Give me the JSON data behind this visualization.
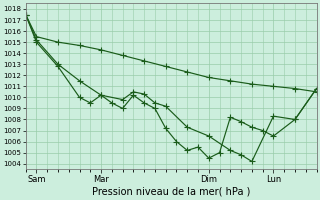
{
  "xlabel": "Pression niveau de la mer( hPa )",
  "ylim": [
    1003.5,
    1018.5
  ],
  "yticks": [
    1004,
    1005,
    1006,
    1007,
    1008,
    1009,
    1010,
    1011,
    1012,
    1013,
    1014,
    1015,
    1016,
    1017,
    1018
  ],
  "bg_color": "#cceedd",
  "line_color": "#1a5c1a",
  "grid_color": "#99ccaa",
  "x_ticks_labels": [
    "Sam",
    "Mar",
    "Dim",
    "Lun"
  ],
  "x_ticks_pos": [
    1,
    7,
    17,
    23
  ],
  "xlim": [
    0,
    27
  ],
  "line1_x": [
    0,
    1,
    3,
    5,
    7,
    9,
    11,
    13,
    15,
    17,
    19,
    21,
    23,
    25,
    27
  ],
  "line1_y": [
    1017.5,
    1015.5,
    1015.0,
    1014.7,
    1014.3,
    1013.8,
    1013.3,
    1012.8,
    1012.3,
    1011.8,
    1011.5,
    1011.2,
    1011.0,
    1010.8,
    1010.5
  ],
  "line2_x": [
    0,
    1,
    3,
    5,
    7,
    9,
    10,
    11,
    12,
    13,
    15,
    17,
    19,
    20,
    21,
    23,
    25,
    27
  ],
  "line2_y": [
    1017.5,
    1015.2,
    1013.0,
    1011.5,
    1010.2,
    1009.8,
    1010.5,
    1010.3,
    1009.5,
    1009.2,
    1007.3,
    1006.5,
    1005.2,
    1004.8,
    1004.2,
    1008.3,
    1008.0,
    1010.8
  ],
  "line3_x": [
    0,
    1,
    3,
    5,
    6,
    7,
    8,
    9,
    10,
    11,
    12,
    13,
    14,
    15,
    16,
    17,
    18,
    19,
    20,
    21,
    22,
    23,
    25,
    27
  ],
  "line3_y": [
    1017.5,
    1015.0,
    1012.8,
    1010.0,
    1009.5,
    1010.2,
    1009.5,
    1009.0,
    1010.2,
    1009.5,
    1009.0,
    1007.2,
    1006.0,
    1005.2,
    1005.5,
    1004.5,
    1005.0,
    1008.2,
    1007.8,
    1007.3,
    1007.0,
    1006.5,
    1008.0,
    1010.8
  ]
}
